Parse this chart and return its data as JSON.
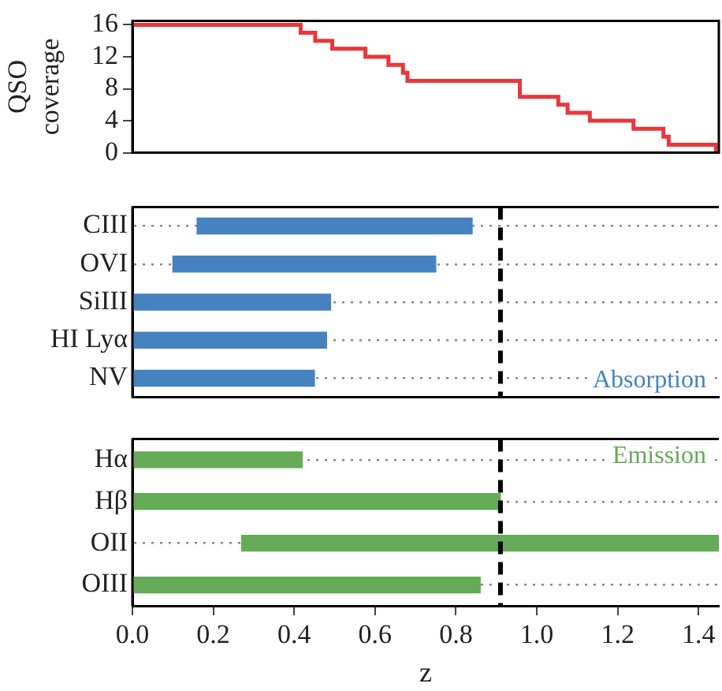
{
  "chart_data": [
    {
      "type": "step",
      "ylabel": "QSO coverage",
      "x": [
        0,
        0.416,
        0.452,
        0.494,
        0.576,
        0.633,
        0.669,
        0.68,
        0.958,
        1.053,
        1.076,
        1.131,
        1.239,
        1.313,
        1.326,
        1.443
      ],
      "values": [
        16,
        15,
        14,
        13,
        12,
        11,
        10,
        9,
        7,
        6,
        5,
        4,
        3,
        2,
        1,
        0
      ],
      "color": "#e8373a",
      "xlim": [
        0,
        1.45
      ],
      "xticks": [
        0,
        0.2,
        0.4,
        0.6,
        0.8,
        1.0,
        1.2,
        1.4
      ],
      "ylim": [
        0,
        16.5
      ],
      "yticks": [
        0,
        4,
        8,
        12,
        16
      ],
      "tick_labels": "y"
    },
    {
      "type": "bar",
      "orientation": "horizontal",
      "categories": [
        "CIII",
        "OVI",
        "SiIII",
        "HI Lyα",
        "NV"
      ],
      "base": [
        0.16,
        0.1,
        0,
        0,
        0
      ],
      "values": [
        0.68,
        0.65,
        0.49,
        0.48,
        0.45
      ],
      "color": "#4682c0",
      "xlim": [
        0,
        1.45
      ],
      "xticks": [
        0,
        0.2,
        0.4,
        0.6,
        0.8,
        1.0,
        1.2,
        1.4
      ],
      "grid": "y",
      "ref_lines": [
        {
          "axis": "x",
          "value": 0.91,
          "line_style": "dashed",
          "color": "#000000"
        }
      ],
      "annotations": [
        "Absorption"
      ],
      "tick_labels": "y"
    },
    {
      "type": "bar",
      "orientation": "horizontal",
      "categories": [
        "Hα",
        "Hβ",
        "OII",
        "OIII"
      ],
      "base": [
        0,
        0,
        0.27,
        0
      ],
      "values": [
        0.42,
        0.91,
        1.18,
        0.86
      ],
      "color": "#66ab57",
      "xlabel": "z",
      "xlim": [
        0,
        1.45
      ],
      "xticks": [
        {
          "value": 0,
          "label": "0.0"
        },
        0.2,
        0.4,
        0.6,
        0.8,
        {
          "value": 1,
          "label": "1.0"
        },
        1.2,
        1.4
      ],
      "grid": "y",
      "ref_lines": [
        {
          "axis": "x",
          "value": 0.91,
          "line_style": "dashed",
          "color": "#000000"
        }
      ],
      "annotations": [
        "Emission"
      ]
    }
  ]
}
